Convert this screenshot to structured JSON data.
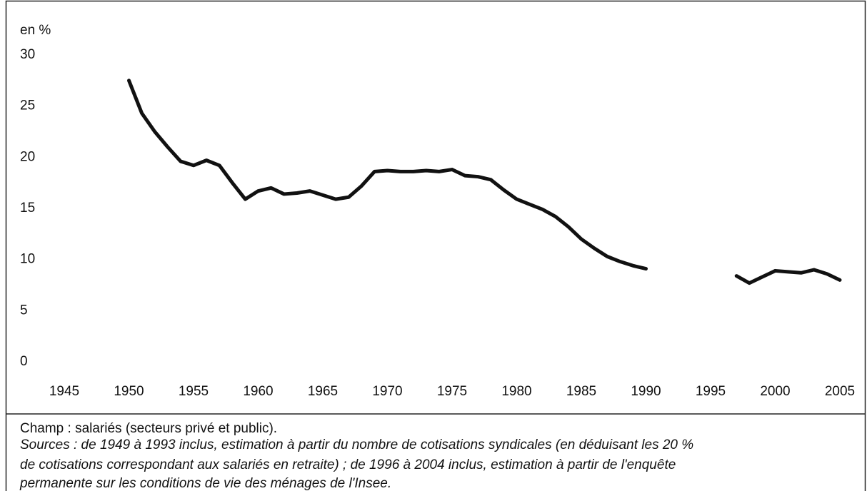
{
  "chart_data": {
    "type": "line",
    "y_label": "en %",
    "x": [
      1950,
      1951,
      1952,
      1953,
      1954,
      1955,
      1956,
      1957,
      1958,
      1959,
      1960,
      1961,
      1962,
      1963,
      1964,
      1965,
      1966,
      1967,
      1968,
      1969,
      1970,
      1971,
      1972,
      1973,
      1974,
      1975,
      1976,
      1977,
      1978,
      1979,
      1980,
      1981,
      1982,
      1983,
      1984,
      1985,
      1986,
      1987,
      1988,
      1989,
      1990,
      1991,
      1992,
      1993,
      1994,
      1995,
      1996,
      1997,
      1998,
      1999,
      2000,
      2001,
      2002,
      2003,
      2004,
      2005
    ],
    "series": [
      {
        "color": "#111111",
        "values": [
          27.5,
          24.3,
          22.5,
          21,
          19.6,
          19.2,
          19.7,
          19.2,
          17.5,
          15.9,
          16.7,
          17,
          16.4,
          16.5,
          16.7,
          16.3,
          15.9,
          16.1,
          17.2,
          18.6,
          18.7,
          18.6,
          18.6,
          18.7,
          18.6,
          18.8,
          18.2,
          18.1,
          17.8,
          16.8,
          15.9,
          15.4,
          14.9,
          14.2,
          13.2,
          12,
          11.1,
          10.3,
          9.8,
          9.4,
          9.1,
          null,
          null,
          null,
          null,
          null,
          null,
          8.4,
          7.7,
          8.3,
          8.9,
          8.8,
          8.7,
          9.0,
          8.6,
          8.0
        ]
      }
    ],
    "xlim": [
      1945,
      2005
    ],
    "xticks": [
      1945,
      1950,
      1955,
      1960,
      1965,
      1970,
      1975,
      1980,
      1985,
      1990,
      1995,
      2000,
      2005
    ],
    "ylim": [
      0,
      30
    ],
    "yticks": [
      0,
      5,
      10,
      15,
      20,
      25,
      30
    ],
    "grid": false,
    "notes": [
      "Champ : salariés (secteurs privé et public)."
    ],
    "source": [
      "Sources : de 1949 à 1993 inclus, estimation à partir du nombre de cotisations syndicales (en déduisant les 20 %",
      "de cotisations correspondant aux salariés en retraite) ; de 1996 à 2004 inclus, estimation à partir de l'enquête",
      "permanente sur les conditions de vie des ménages de l'Insee."
    ]
  }
}
